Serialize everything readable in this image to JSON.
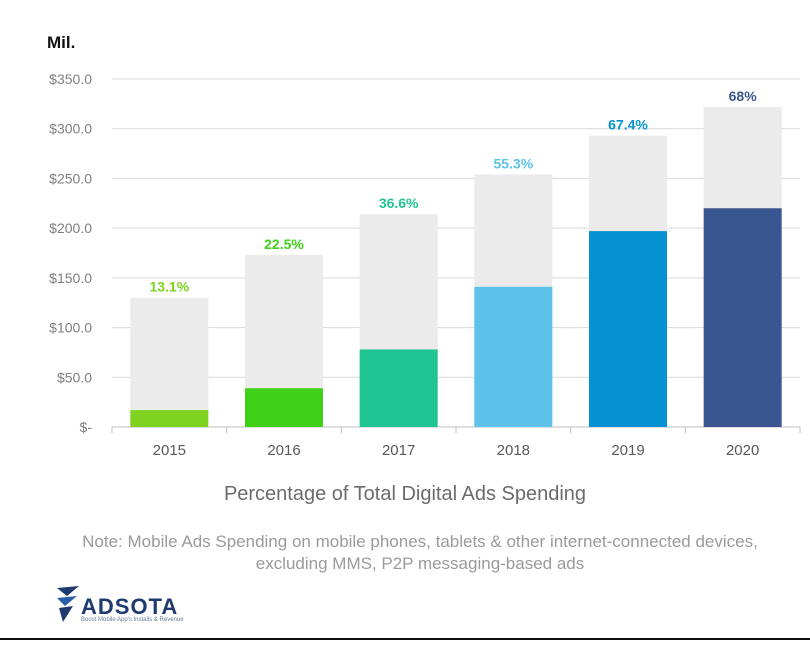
{
  "unit_label": "Mil.",
  "chart_data": {
    "type": "bar",
    "stacking": "overlay",
    "title": "Percentage of Total Digital Ads Spending",
    "xlabel": "",
    "ylabel": "Mil.",
    "ylim": [
      0,
      350
    ],
    "yticks": [
      0,
      50,
      100,
      150,
      200,
      250,
      300,
      350
    ],
    "ytick_labels": [
      "$-",
      "$50.0",
      "$100.0",
      "$150.0",
      "$200.0",
      "$250.0",
      "$300.0",
      "$350.0"
    ],
    "categories": [
      "2015",
      "2016",
      "2017",
      "2018",
      "2019",
      "2020"
    ],
    "series": [
      {
        "name": "Total Digital Ads Spending",
        "values": [
          130,
          173,
          214,
          254,
          293,
          322
        ],
        "color": "#ebebeb"
      },
      {
        "name": "Mobile Ads Spending",
        "values": [
          17,
          39,
          78,
          141,
          197,
          220
        ],
        "colors": [
          "#7ed321",
          "#3fd117",
          "#1fc693",
          "#5ec3eb",
          "#0591d2",
          "#3a5690"
        ]
      }
    ],
    "data_labels": [
      "13.1%",
      "22.5%",
      "36.6%",
      "55.3%",
      "67.4%",
      "68%"
    ],
    "label_colors": [
      "#7ed321",
      "#3fd117",
      "#1fc693",
      "#5ec3eb",
      "#0591d2",
      "#3a5690"
    ],
    "grid": true
  },
  "note": {
    "line1": "Note: Mobile Ads Spending on mobile phones, tablets & other internet-connected devices,",
    "line2": "excluding MMS, P2P messaging-based  ads"
  },
  "logo": {
    "name": "ADSOTA",
    "tagline": "Boost Mobile App's Installs & Revenue",
    "color": "#1e3a6e"
  }
}
